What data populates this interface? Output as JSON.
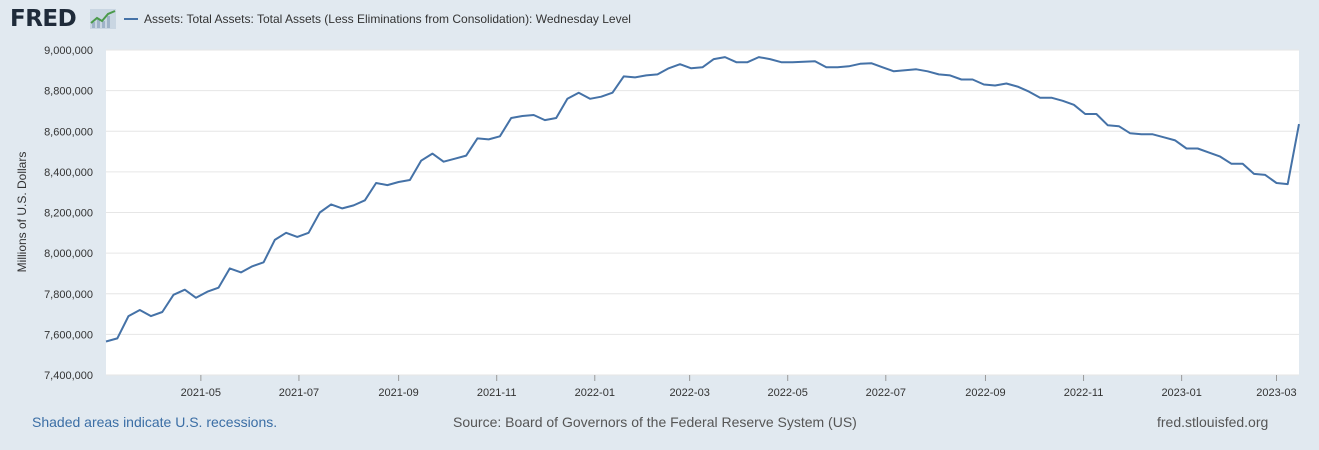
{
  "header": {
    "logo_text": "FRED",
    "logo_icon": "line-chart-icon",
    "legend_label": "Assets: Total Assets: Total Assets (Less Eliminations from Consolidation): Wednesday Level"
  },
  "footer": {
    "recession_note": "Shaded areas indicate U.S. recessions.",
    "source": "Source: Board of Governors of the Federal Reserve System (US)",
    "site": "fred.stlouisfed.org"
  },
  "colors": {
    "series": "#4572a7",
    "background": "#e1e9f0",
    "plot_background": "#ffffff",
    "grid": "#e6e6e6"
  },
  "chart_data": {
    "type": "line",
    "title": "",
    "xlabel": "",
    "ylabel": "Millions of U.S. Dollars",
    "ylim": [
      7400000,
      9000000
    ],
    "xlim": [
      "2021-03-03",
      "2023-03-15"
    ],
    "grid": true,
    "legend_position": "top-left",
    "y_ticks": [
      {
        "value": 7400000,
        "label": "7,400,000"
      },
      {
        "value": 7600000,
        "label": "7,600,000"
      },
      {
        "value": 7800000,
        "label": "7,800,000"
      },
      {
        "value": 8000000,
        "label": "8,000,000"
      },
      {
        "value": 8200000,
        "label": "8,200,000"
      },
      {
        "value": 8400000,
        "label": "8,400,000"
      },
      {
        "value": 8600000,
        "label": "8,600,000"
      },
      {
        "value": 8800000,
        "label": "8,800,000"
      },
      {
        "value": 9000000,
        "label": "9,000,000"
      }
    ],
    "x_ticks": [
      {
        "date": "2021-05-01",
        "label": "2021-05"
      },
      {
        "date": "2021-07-01",
        "label": "2021-07"
      },
      {
        "date": "2021-09-01",
        "label": "2021-09"
      },
      {
        "date": "2021-11-01",
        "label": "2021-11"
      },
      {
        "date": "2022-01-01",
        "label": "2022-01"
      },
      {
        "date": "2022-03-01",
        "label": "2022-03"
      },
      {
        "date": "2022-05-01",
        "label": "2022-05"
      },
      {
        "date": "2022-07-01",
        "label": "2022-07"
      },
      {
        "date": "2022-09-01",
        "label": "2022-09"
      },
      {
        "date": "2022-11-01",
        "label": "2022-11"
      },
      {
        "date": "2023-01-01",
        "label": "2023-01"
      },
      {
        "date": "2023-03-01",
        "label": "2023-03"
      }
    ],
    "series": [
      {
        "name": "Assets: Total Assets: Total Assets (Less Eliminations from Consolidation): Wednesday Level",
        "x": [
          "2021-03-03",
          "2021-03-10",
          "2021-03-17",
          "2021-03-24",
          "2021-03-31",
          "2021-04-07",
          "2021-04-14",
          "2021-04-21",
          "2021-04-28",
          "2021-05-05",
          "2021-05-12",
          "2021-05-19",
          "2021-05-26",
          "2021-06-02",
          "2021-06-09",
          "2021-06-16",
          "2021-06-23",
          "2021-06-30",
          "2021-07-07",
          "2021-07-14",
          "2021-07-21",
          "2021-07-28",
          "2021-08-04",
          "2021-08-11",
          "2021-08-18",
          "2021-08-25",
          "2021-09-01",
          "2021-09-08",
          "2021-09-15",
          "2021-09-22",
          "2021-09-29",
          "2021-10-06",
          "2021-10-13",
          "2021-10-20",
          "2021-10-27",
          "2021-11-03",
          "2021-11-10",
          "2021-11-17",
          "2021-11-24",
          "2021-12-01",
          "2021-12-08",
          "2021-12-15",
          "2021-12-22",
          "2021-12-29",
          "2022-01-05",
          "2022-01-12",
          "2022-01-19",
          "2022-01-26",
          "2022-02-02",
          "2022-02-09",
          "2022-02-16",
          "2022-02-23",
          "2022-03-02",
          "2022-03-09",
          "2022-03-16",
          "2022-03-23",
          "2022-03-30",
          "2022-04-06",
          "2022-04-13",
          "2022-04-20",
          "2022-04-27",
          "2022-05-04",
          "2022-05-11",
          "2022-05-18",
          "2022-05-25",
          "2022-06-01",
          "2022-06-08",
          "2022-06-15",
          "2022-06-22",
          "2022-06-29",
          "2022-07-06",
          "2022-07-13",
          "2022-07-20",
          "2022-07-27",
          "2022-08-03",
          "2022-08-10",
          "2022-08-17",
          "2022-08-24",
          "2022-08-31",
          "2022-09-07",
          "2022-09-14",
          "2022-09-21",
          "2022-09-28",
          "2022-10-05",
          "2022-10-12",
          "2022-10-19",
          "2022-10-26",
          "2022-11-02",
          "2022-11-09",
          "2022-11-16",
          "2022-11-23",
          "2022-11-30",
          "2022-12-07",
          "2022-12-14",
          "2022-12-21",
          "2022-12-28",
          "2023-01-04",
          "2023-01-11",
          "2023-01-18",
          "2023-01-25",
          "2023-02-01",
          "2023-02-08",
          "2023-02-15",
          "2023-02-22",
          "2023-03-01",
          "2023-03-08",
          "2023-03-15"
        ],
        "values": [
          7565000,
          7580000,
          7690000,
          7720000,
          7690000,
          7710000,
          7795000,
          7820000,
          7780000,
          7810000,
          7830000,
          7925000,
          7905000,
          7935000,
          7955000,
          8065000,
          8100000,
          8080000,
          8100000,
          8200000,
          8240000,
          8220000,
          8235000,
          8260000,
          8345000,
          8335000,
          8350000,
          8360000,
          8455000,
          8490000,
          8450000,
          8465000,
          8480000,
          8565000,
          8560000,
          8575000,
          8665000,
          8675000,
          8680000,
          8655000,
          8665000,
          8760000,
          8790000,
          8760000,
          8770000,
          8790000,
          8870000,
          8865000,
          8875000,
          8880000,
          8910000,
          8930000,
          8910000,
          8915000,
          8955000,
          8965000,
          8940000,
          8940000,
          8965000,
          8955000,
          8940000,
          8940000,
          8942000,
          8945000,
          8915000,
          8915000,
          8920000,
          8932000,
          8935000,
          8915000,
          8895000,
          8900000,
          8905000,
          8895000,
          8880000,
          8875000,
          8855000,
          8855000,
          8830000,
          8825000,
          8835000,
          8820000,
          8795000,
          8765000,
          8765000,
          8750000,
          8730000,
          8685000,
          8685000,
          8630000,
          8625000,
          8590000,
          8585000,
          8585000,
          8570000,
          8555000,
          8515000,
          8515000,
          8495000,
          8475000,
          8440000,
          8440000,
          8390000,
          8385000,
          8345000,
          8340000,
          8635000
        ]
      }
    ]
  }
}
